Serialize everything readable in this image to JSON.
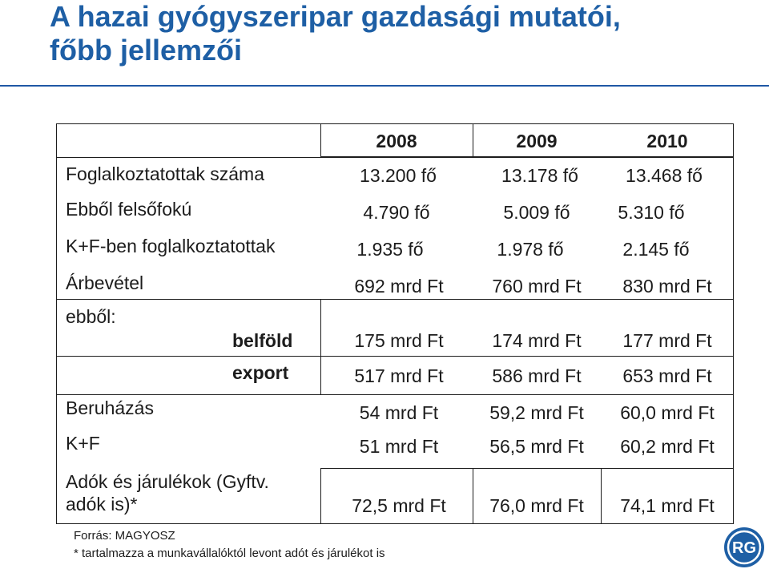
{
  "title": {
    "line1": "A hazai gyógyszeripar gazdasági mutatói,",
    "line2": "főbb jellemzői"
  },
  "table": {
    "years": [
      "2008",
      "2009",
      "2010"
    ],
    "rows": [
      {
        "label": "Foglalkoztatottak száma",
        "values": [
          "13.200 fő",
          "13.178 fő",
          "13.468 fő"
        ]
      },
      {
        "label": "Ebből felsőfokú",
        "values": [
          "4.790 fő",
          "5.009 fő",
          "5.310 fő"
        ]
      },
      {
        "label": "K+F-ben foglalkoztatottak",
        "values": [
          "1.935 fő",
          "1.978 fő",
          "2.145 fő"
        ]
      },
      {
        "label": "Árbevétel",
        "values": [
          "692 mrd Ft",
          "760 mrd Ft",
          "830 mrd Ft"
        ]
      },
      {
        "label": "ebből:",
        "values": []
      },
      {
        "label": "belföld",
        "values": [
          "175 mrd Ft",
          "174 mrd Ft",
          "177 mrd Ft"
        ]
      },
      {
        "label": "export",
        "values": [
          "517 mrd Ft",
          "586 mrd Ft",
          "653 mrd Ft"
        ]
      },
      {
        "label": "Beruházás",
        "values": [
          "54 mrd Ft",
          "59,2 mrd Ft",
          "60,0 mrd Ft"
        ]
      },
      {
        "label": "K+F",
        "values": [
          "51 mrd Ft",
          "56,5 mrd Ft",
          "60,2 mrd Ft"
        ]
      },
      {
        "label_line1": "Adók és járulékok (Gyftv.",
        "label_line2": "adók is)*",
        "values": [
          "72,5 mrd Ft",
          "76,0 mrd Ft",
          "74,1 mrd Ft"
        ]
      }
    ]
  },
  "footnotes": {
    "source": "Forrás: MAGYOSZ",
    "note": "* tartalmazza a munkavállalóktól levont adót és járulékot  is"
  },
  "logo": {
    "text": "RG",
    "color": "#1e5fa5"
  },
  "colors": {
    "title": "#1e5fa5",
    "rule": "#1f58a5"
  }
}
